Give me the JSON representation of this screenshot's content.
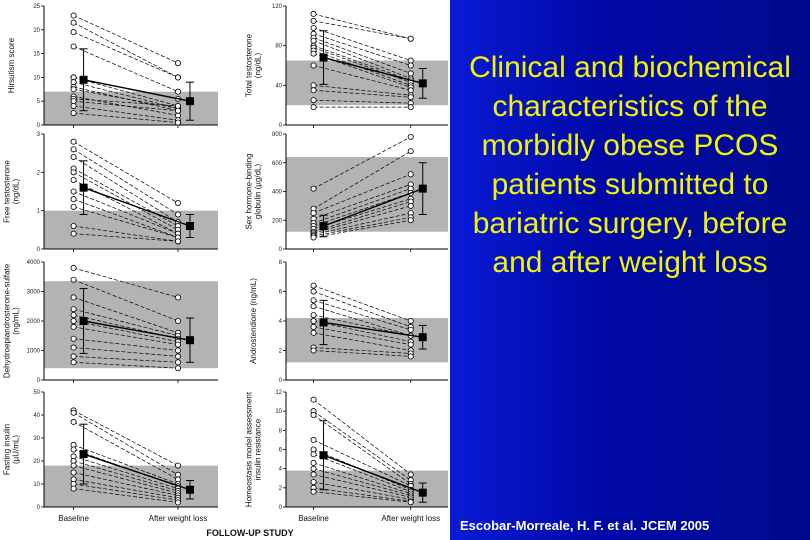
{
  "slide": {
    "title": "Clinical and biochemical characteristics of the morbidly obese PCOS patients submitted to bariatric surgery, before and after weight loss",
    "citation": "Escobar-Morreale, H. F. et al. JCEM 2005",
    "title_color": "#f3f30a",
    "background_color": "#0a1a9e"
  },
  "figure": {
    "footer": "FOLLOW-UP STUDY",
    "categories": [
      "Baseline",
      "After weight loss"
    ]
  },
  "chart_data": [
    {
      "type": "line",
      "ylabel": "Hirsutism score",
      "ylim": [
        0,
        25
      ],
      "yticks": [
        0,
        5,
        10,
        15,
        20,
        25
      ],
      "normal_range": [
        0,
        7
      ],
      "categories": [
        "Baseline",
        "After weight loss"
      ],
      "individuals": [
        [
          23,
          13
        ],
        [
          21.5,
          10
        ],
        [
          19.5,
          10
        ],
        [
          16.5,
          7
        ],
        [
          10,
          5.5
        ],
        [
          10,
          4
        ],
        [
          9,
          3.5
        ],
        [
          8,
          3
        ],
        [
          7.5,
          3.5
        ],
        [
          6,
          2
        ],
        [
          5.5,
          4
        ],
        [
          5,
          3
        ],
        [
          4,
          1
        ],
        [
          2.5,
          0.5
        ]
      ],
      "mean": {
        "values": [
          9.5,
          5
        ],
        "error": [
          6.5,
          4
        ]
      }
    },
    {
      "type": "line",
      "ylabel": "Total testosterone (ng/dL)",
      "ylim": [
        0,
        120
      ],
      "yticks": [
        0,
        40,
        80,
        120
      ],
      "normal_range": [
        20,
        65
      ],
      "categories": [
        "Baseline",
        "After weight loss"
      ],
      "individuals": [
        [
          112,
          87
        ],
        [
          105,
          87
        ],
        [
          98,
          65
        ],
        [
          92,
          60
        ],
        [
          88,
          52
        ],
        [
          85,
          47
        ],
        [
          80,
          45
        ],
        [
          78,
          43
        ],
        [
          75,
          40
        ],
        [
          72,
          38
        ],
        [
          60,
          35
        ],
        [
          40,
          30
        ],
        [
          35,
          28
        ],
        [
          25,
          22
        ],
        [
          18,
          18
        ]
      ],
      "mean": {
        "values": [
          68,
          42
        ],
        "error": [
          27,
          15
        ]
      }
    },
    {
      "type": "line",
      "ylabel": "Free testosterone (ng/dL)",
      "ylim": [
        0,
        3
      ],
      "yticks": [
        0,
        1,
        2,
        3
      ],
      "normal_range": [
        0,
        1
      ],
      "categories": [
        "Baseline",
        "After weight loss"
      ],
      "individuals": [
        [
          2.8,
          1.2
        ],
        [
          2.6,
          0.9
        ],
        [
          2.4,
          0.7
        ],
        [
          2.1,
          0.6
        ],
        [
          2.0,
          0.5
        ],
        [
          1.8,
          0.4
        ],
        [
          1.5,
          0.4
        ],
        [
          1.3,
          0.3
        ],
        [
          1.1,
          0.3
        ],
        [
          0.6,
          0.2
        ],
        [
          0.4,
          0.2
        ]
      ],
      "mean": {
        "values": [
          1.6,
          0.6
        ],
        "error": [
          0.7,
          0.3
        ]
      }
    },
    {
      "type": "line",
      "ylabel": "Sex hormone-binding globulin (µg/dL)",
      "ylim": [
        0,
        800
      ],
      "yticks": [
        0,
        200,
        400,
        600,
        800
      ],
      "normal_range": [
        120,
        640
      ],
      "categories": [
        "Baseline",
        "After weight loss"
      ],
      "individuals": [
        [
          420,
          780
        ],
        [
          280,
          680
        ],
        [
          250,
          520
        ],
        [
          210,
          450
        ],
        [
          180,
          420
        ],
        [
          160,
          390
        ],
        [
          140,
          350
        ],
        [
          120,
          330
        ],
        [
          110,
          300
        ],
        [
          100,
          250
        ],
        [
          90,
          220
        ],
        [
          80,
          200
        ]
      ],
      "mean": {
        "values": [
          160,
          420
        ],
        "error": [
          75,
          180
        ]
      }
    },
    {
      "type": "line",
      "ylabel": "Dehydroepiandrosterone-sulfate (ng/mL)",
      "ylim": [
        0,
        4000
      ],
      "yticks": [
        0,
        1000,
        2000,
        3000,
        4000
      ],
      "normal_range": [
        400,
        3350
      ],
      "categories": [
        "Baseline",
        "After weight loss"
      ],
      "individuals": [
        [
          3800,
          2800
        ],
        [
          3400,
          2000
        ],
        [
          2800,
          1600
        ],
        [
          2400,
          1500
        ],
        [
          2200,
          1400
        ],
        [
          2000,
          1300
        ],
        [
          1800,
          1200
        ],
        [
          1400,
          1000
        ],
        [
          1100,
          800
        ],
        [
          800,
          600
        ],
        [
          600,
          400
        ]
      ],
      "mean": {
        "values": [
          2000,
          1350
        ],
        "error": [
          1100,
          750
        ]
      }
    },
    {
      "type": "line",
      "ylabel": "Androstendione (ng/mL)",
      "ylim": [
        0,
        8
      ],
      "yticks": [
        0,
        2,
        4,
        6,
        8
      ],
      "normal_range": [
        1.2,
        4.2
      ],
      "categories": [
        "Baseline",
        "After weight loss"
      ],
      "individuals": [
        [
          6.4,
          4.0
        ],
        [
          6.0,
          3.6
        ],
        [
          5.4,
          3.4
        ],
        [
          5.0,
          3.0
        ],
        [
          4.4,
          3.0
        ],
        [
          4.0,
          2.6
        ],
        [
          3.6,
          2.4
        ],
        [
          3.2,
          2.0
        ],
        [
          2.2,
          1.8
        ],
        [
          2.0,
          1.6
        ]
      ],
      "mean": {
        "values": [
          3.9,
          2.9
        ],
        "error": [
          1.5,
          0.8
        ]
      }
    },
    {
      "type": "line",
      "ylabel": "Fasting insulin (µU/mL)",
      "ylim": [
        0,
        50
      ],
      "yticks": [
        0,
        10,
        20,
        30,
        40,
        50
      ],
      "normal_range": [
        0,
        18
      ],
      "categories": [
        "Baseline",
        "After weight loss"
      ],
      "individuals": [
        [
          42,
          18
        ],
        [
          41,
          14
        ],
        [
          37,
          12
        ],
        [
          27,
          10
        ],
        [
          25,
          9
        ],
        [
          22,
          8
        ],
        [
          20,
          7
        ],
        [
          18,
          6
        ],
        [
          15,
          5
        ],
        [
          12,
          4
        ],
        [
          10,
          3
        ],
        [
          8,
          2
        ]
      ],
      "mean": {
        "values": [
          23,
          7.5
        ],
        "error": [
          13,
          4
        ]
      }
    },
    {
      "type": "line",
      "ylabel": "Homeostasis model assessment insulin resistance",
      "ylim": [
        0,
        12
      ],
      "yticks": [
        0,
        2,
        4,
        6,
        8,
        10,
        12
      ],
      "normal_range": [
        0,
        3.8
      ],
      "categories": [
        "Baseline",
        "After weight loss"
      ],
      "individuals": [
        [
          11.2,
          3.4
        ],
        [
          10.0,
          2.8
        ],
        [
          9.6,
          2.4
        ],
        [
          7.0,
          2.2
        ],
        [
          6.0,
          1.8
        ],
        [
          5.5,
          1.6
        ],
        [
          4.6,
          1.4
        ],
        [
          4.0,
          1.2
        ],
        [
          3.4,
          1.0
        ],
        [
          2.6,
          0.8
        ],
        [
          2.0,
          0.6
        ],
        [
          1.6,
          0.5
        ]
      ],
      "mean": {
        "values": [
          5.4,
          1.5
        ],
        "error": [
          3.6,
          1.0
        ]
      }
    }
  ]
}
